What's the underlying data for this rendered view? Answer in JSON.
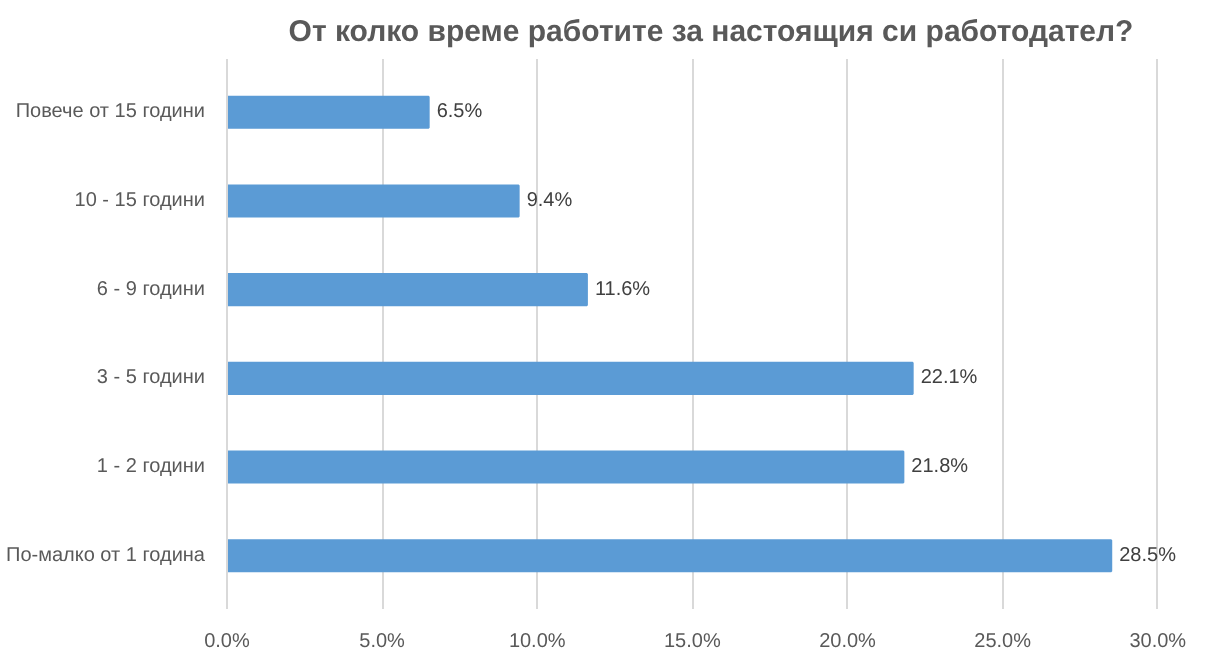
{
  "chart_data": {
    "type": "bar",
    "orientation": "horizontal",
    "title": "От колко време работите за настоящия си работодател?",
    "categories": [
      "Повече от 15 години",
      "10 - 15 години",
      "6 - 9 години",
      "3 - 5 години",
      "1 - 2 години",
      "По-малко от 1 година"
    ],
    "values": [
      6.5,
      9.4,
      11.6,
      22.1,
      21.8,
      28.5
    ],
    "value_labels": [
      "6.5%",
      "9.4%",
      "11.6%",
      "22.1%",
      "21.8%",
      "28.5%"
    ],
    "color": "#5b9bd5",
    "xlim": [
      0,
      30
    ],
    "xticks": [
      {
        "value": 0,
        "label": "0.0%"
      },
      {
        "value": 5,
        "label": "5.0%"
      },
      {
        "value": 10,
        "label": "10.0%"
      },
      {
        "value": 15,
        "label": "15.0%"
      },
      {
        "value": 20,
        "label": "20.0%"
      },
      {
        "value": 25,
        "label": "25.0%"
      },
      {
        "value": 30,
        "label": "30.0%"
      }
    ],
    "grid": "x"
  }
}
